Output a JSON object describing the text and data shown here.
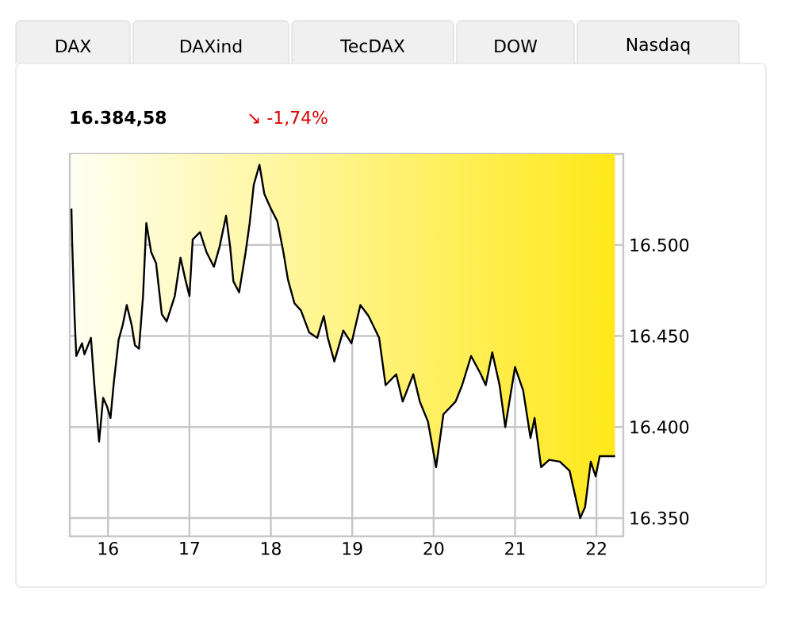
{
  "chart_data": {
    "type": "line",
    "title": "16.384,58",
    "subtitle": "↘ -1,74%",
    "annotations": [
      "DAX",
      "DAXind",
      "TecDAX",
      "DOW",
      "Nasdaq"
    ],
    "x": [
      15.55,
      15.56,
      15.59,
      15.61,
      15.68,
      15.71,
      15.79,
      15.83,
      15.89,
      15.94,
      15.99,
      16.03,
      16.07,
      16.13,
      16.18,
      16.23,
      16.29,
      16.33,
      16.38,
      16.43,
      16.47,
      16.53,
      16.59,
      16.66,
      16.72,
      16.82,
      16.89,
      16.95,
      17.0,
      17.04,
      17.13,
      17.21,
      17.3,
      17.37,
      17.45,
      17.5,
      17.54,
      17.61,
      17.69,
      17.74,
      17.79,
      17.86,
      17.92,
      18.0,
      18.08,
      18.15,
      18.21,
      18.29,
      18.37,
      18.47,
      18.57,
      18.65,
      18.7,
      18.78,
      18.89,
      18.99,
      19.1,
      19.2,
      19.33,
      19.41,
      19.54,
      19.62,
      19.75,
      19.83,
      19.93,
      20.03,
      20.12,
      20.27,
      20.35,
      20.46,
      20.58,
      20.64,
      20.72,
      20.81,
      20.88,
      21.0,
      21.1,
      21.19,
      21.24,
      21.32,
      21.42,
      21.55,
      21.67,
      21.8,
      21.86,
      21.93,
      21.99,
      22.04,
      22.23
    ],
    "values": [
      16520,
      16500,
      16459,
      16439,
      16446,
      16440,
      16449,
      16424,
      16392,
      16416,
      16411,
      16405,
      16424,
      16448,
      16456,
      16467,
      16456,
      16445,
      16443,
      16472,
      16512,
      16496,
      16490,
      16462,
      16458,
      16472,
      16493,
      16481,
      16472,
      16503,
      16507,
      16496,
      16488,
      16499,
      16516,
      16499,
      16480,
      16474,
      16496,
      16512,
      16533,
      16544,
      16528,
      16520,
      16513,
      16497,
      16481,
      16468,
      16464,
      16452,
      16449,
      16461,
      16449,
      16436,
      16453,
      16446,
      16467,
      16461,
      16449,
      16423,
      16429,
      16414,
      16429,
      16414,
      16403,
      16378,
      16407,
      16414,
      16423,
      16439,
      16429,
      16423,
      16441,
      16423,
      16400,
      16433,
      16420,
      16394,
      16405,
      16378,
      16382,
      16381,
      16376,
      16350,
      16356,
      16381,
      16373,
      16384,
      16384
    ],
    "color": "#000000",
    "xlim": [
      15.53,
      22.33
    ],
    "ylim": [
      16340,
      16550
    ],
    "xticks": [
      16,
      17,
      18,
      19,
      20,
      21,
      22
    ],
    "yticks": [
      {
        "value": 16350,
        "label": "16.350"
      },
      {
        "value": 16400,
        "label": "16.400"
      },
      {
        "value": 16450,
        "label": "16.450"
      },
      {
        "value": 16500,
        "label": "16.500"
      }
    ],
    "grid": true
  }
}
